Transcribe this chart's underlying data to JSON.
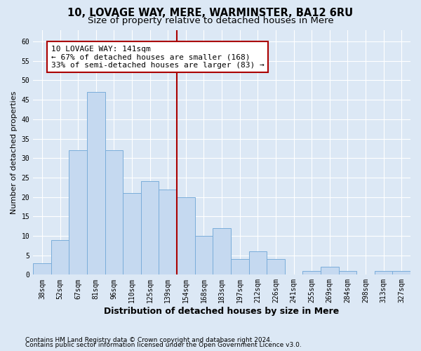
{
  "title": "10, LOVAGE WAY, MERE, WARMINSTER, BA12 6RU",
  "subtitle": "Size of property relative to detached houses in Mere",
  "xlabel": "Distribution of detached houses by size in Mere",
  "ylabel": "Number of detached properties",
  "categories": [
    "38sqm",
    "52sqm",
    "67sqm",
    "81sqm",
    "96sqm",
    "110sqm",
    "125sqm",
    "139sqm",
    "154sqm",
    "168sqm",
    "183sqm",
    "197sqm",
    "212sqm",
    "226sqm",
    "241sqm",
    "255sqm",
    "269sqm",
    "284sqm",
    "298sqm",
    "313sqm",
    "327sqm"
  ],
  "values": [
    3,
    9,
    32,
    47,
    32,
    21,
    24,
    22,
    20,
    10,
    12,
    4,
    6,
    4,
    0,
    1,
    2,
    1,
    0,
    1,
    1
  ],
  "bar_color": "#c5d9f0",
  "bar_edge_color": "#7aadda",
  "vline_x": 7.5,
  "vline_color": "#aa0000",
  "annotation_text": "10 LOVAGE WAY: 141sqm\n← 67% of detached houses are smaller (168)\n33% of semi-detached houses are larger (83) →",
  "annotation_box_color": "#ffffff",
  "annotation_box_edge_color": "#aa0000",
  "ylim": [
    0,
    63
  ],
  "yticks": [
    0,
    5,
    10,
    15,
    20,
    25,
    30,
    35,
    40,
    45,
    50,
    55,
    60
  ],
  "footer_line1": "Contains HM Land Registry data © Crown copyright and database right 2024.",
  "footer_line2": "Contains public sector information licensed under the Open Government Licence v3.0.",
  "bg_color": "#dce8f5",
  "plot_bg_color": "#dce8f5",
  "title_fontsize": 10.5,
  "subtitle_fontsize": 9.5,
  "xlabel_fontsize": 9,
  "ylabel_fontsize": 8,
  "tick_fontsize": 7,
  "footer_fontsize": 6.5
}
